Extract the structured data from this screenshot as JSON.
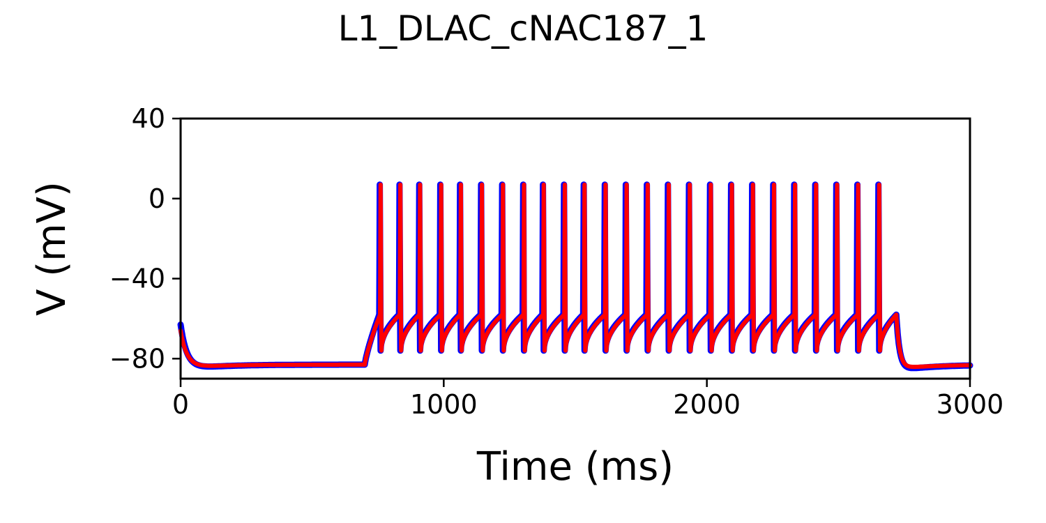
{
  "chart_data": {
    "type": "line",
    "title": "L1_DLAC_cNAC187_1",
    "xlabel": "Time (ms)",
    "ylabel": "V (mV)",
    "xlim": [
      0,
      3000
    ],
    "ylim": [
      -90,
      40
    ],
    "xticks": [
      0,
      1000,
      2000,
      3000
    ],
    "yticks": [
      -80,
      -40,
      0,
      40
    ],
    "xtick_labels": [
      "0",
      "1000",
      "2000",
      "3000"
    ],
    "ytick_labels": [
      "−80",
      "−40",
      "0",
      "40"
    ],
    "grid": false,
    "legend": "none",
    "series": [
      {
        "color": "#0000ff",
        "resting_mv": -83,
        "initial_mv": -63,
        "undershoot_mv": -86,
        "stimulus_on_ms": 700,
        "stimulus_off_ms": 2720,
        "spike_peak_mv": 7,
        "spike_trough_mv": -76,
        "spike_threshold_mv": -58,
        "spike_times_ms": [
          755,
          830,
          905,
          985,
          1060,
          1140,
          1220,
          1300,
          1375,
          1455,
          1530,
          1610,
          1690,
          1770,
          1850,
          1930,
          2010,
          2090,
          2170,
          2250,
          2330,
          2410,
          2490,
          2570,
          2650
        ]
      },
      {
        "color": "#ff0000",
        "resting_mv": -83,
        "initial_mv": -66,
        "undershoot_mv": -85,
        "stimulus_on_ms": 700,
        "stimulus_off_ms": 2720,
        "spike_peak_mv": 7,
        "spike_trough_mv": -76,
        "spike_threshold_mv": -58,
        "spike_times_ms": [
          758,
          833,
          908,
          988,
          1063,
          1143,
          1223,
          1303,
          1378,
          1458,
          1533,
          1613,
          1693,
          1773,
          1853,
          1933,
          2013,
          2093,
          2173,
          2253,
          2333,
          2413,
          2493,
          2573,
          2653
        ]
      }
    ]
  }
}
